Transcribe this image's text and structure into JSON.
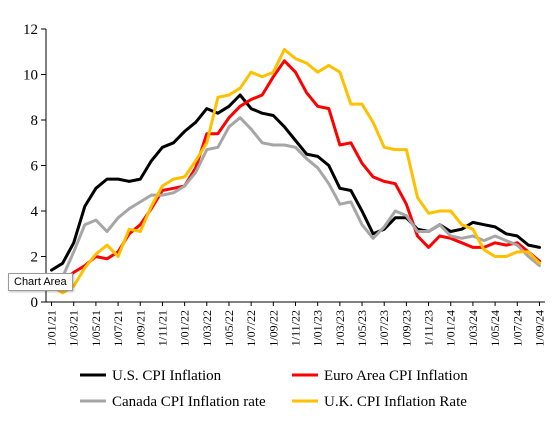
{
  "chart_data": {
    "type": "line",
    "title": "",
    "xlabel": "",
    "ylabel": "",
    "ylim": [
      0,
      12
    ],
    "yticks": [
      "0",
      "2",
      "4",
      "6",
      "8",
      "10",
      "12"
    ],
    "xtick_labels": [
      "1/01/21",
      "1/03/21",
      "1/05/21",
      "1/07/21",
      "1/09/21",
      "1/11/21",
      "1/01/22",
      "1/03/22",
      "1/05/22",
      "1/07/22",
      "1/09/22",
      "1/11/22",
      "1/01/23",
      "1/03/23",
      "1/05/23",
      "1/07/23",
      "1/09/23",
      "1/11/23",
      "1/01/24",
      "1/03/24",
      "1/05/24",
      "1/07/24",
      "1/09/24"
    ],
    "x": [
      "2021-01",
      "2021-02",
      "2021-03",
      "2021-04",
      "2021-05",
      "2021-06",
      "2021-07",
      "2021-08",
      "2021-09",
      "2021-10",
      "2021-11",
      "2021-12",
      "2022-01",
      "2022-02",
      "2022-03",
      "2022-04",
      "2022-05",
      "2022-06",
      "2022-07",
      "2022-08",
      "2022-09",
      "2022-10",
      "2022-11",
      "2022-12",
      "2023-01",
      "2023-02",
      "2023-03",
      "2023-04",
      "2023-05",
      "2023-06",
      "2023-07",
      "2023-08",
      "2023-09",
      "2023-10",
      "2023-11",
      "2023-12",
      "2024-01",
      "2024-02",
      "2024-03",
      "2024-04",
      "2024-05",
      "2024-06",
      "2024-07",
      "2024-08",
      "2024-09"
    ],
    "grid": false,
    "legend_position": "bottom",
    "series": [
      {
        "name": "U.S. CPI Inflation",
        "color": "#000000",
        "values": [
          1.4,
          1.7,
          2.6,
          4.2,
          5.0,
          5.4,
          5.4,
          5.3,
          5.4,
          6.2,
          6.8,
          7.0,
          7.5,
          7.9,
          8.5,
          8.3,
          8.6,
          9.1,
          8.5,
          8.3,
          8.2,
          7.7,
          7.1,
          6.5,
          6.4,
          6.0,
          5.0,
          4.9,
          4.0,
          3.0,
          3.2,
          3.7,
          3.7,
          3.2,
          3.1,
          3.4,
          3.1,
          3.2,
          3.5,
          3.4,
          3.3,
          3.0,
          2.9,
          2.5,
          2.4
        ]
      },
      {
        "name": "Euro Area CPI Inflation",
        "color": "#ff0000",
        "values": [
          0.9,
          0.9,
          1.3,
          1.6,
          2.0,
          1.9,
          2.2,
          3.0,
          3.4,
          4.1,
          4.9,
          5.0,
          5.1,
          5.9,
          7.4,
          7.4,
          8.1,
          8.6,
          8.9,
          9.1,
          9.9,
          10.6,
          10.1,
          9.2,
          8.6,
          8.5,
          6.9,
          7.0,
          6.1,
          5.5,
          5.3,
          5.2,
          4.3,
          2.9,
          2.4,
          2.9,
          2.8,
          2.6,
          2.4,
          2.4,
          2.6,
          2.5,
          2.6,
          2.2,
          1.8
        ]
      },
      {
        "name": "Canada CPI Inflation rate",
        "color": "#a6a6a6",
        "values": [
          1.0,
          1.1,
          2.2,
          3.4,
          3.6,
          3.1,
          3.7,
          4.1,
          4.4,
          4.7,
          4.7,
          4.8,
          5.1,
          5.7,
          6.7,
          6.8,
          7.7,
          8.1,
          7.6,
          7.0,
          6.9,
          6.9,
          6.8,
          6.3,
          5.9,
          5.2,
          4.3,
          4.4,
          3.4,
          2.8,
          3.3,
          4.0,
          3.8,
          3.1,
          3.1,
          3.4,
          2.9,
          2.8,
          2.9,
          2.7,
          2.9,
          2.7,
          2.5,
          2.0,
          1.6
        ]
      },
      {
        "name": "U.K. CPI Inflation Rate",
        "color": "#ffc000",
        "values": [
          0.7,
          0.4,
          0.7,
          1.5,
          2.1,
          2.5,
          2.0,
          3.2,
          3.1,
          4.2,
          5.1,
          5.4,
          5.5,
          6.2,
          7.0,
          9.0,
          9.1,
          9.4,
          10.1,
          9.9,
          10.1,
          11.1,
          10.7,
          10.5,
          10.1,
          10.4,
          10.1,
          8.7,
          8.7,
          7.9,
          6.8,
          6.7,
          6.7,
          4.6,
          3.9,
          4.0,
          4.0,
          3.4,
          3.2,
          2.3,
          2.0,
          2.0,
          2.2,
          2.2,
          1.7
        ]
      }
    ]
  },
  "chart_data_display": {},
  "tooltip": "Chart Area"
}
